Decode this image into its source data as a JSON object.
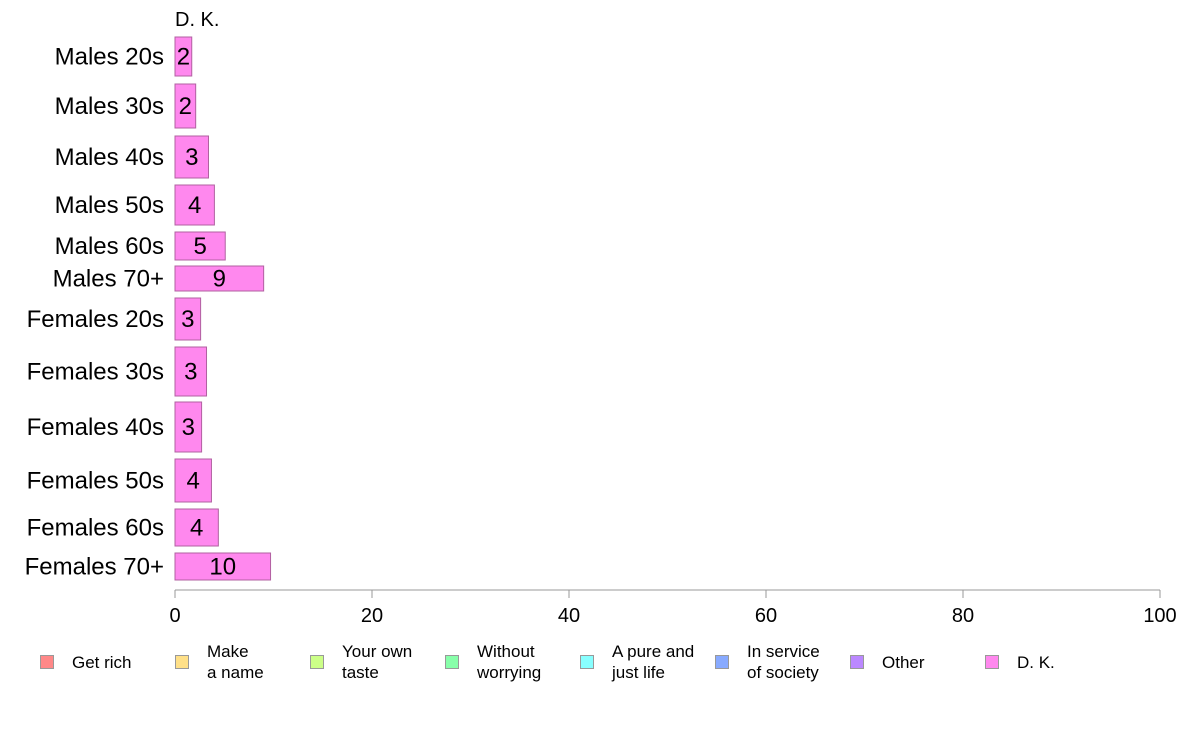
{
  "chart_data": {
    "type": "bar",
    "orientation": "horizontal",
    "column_title": "D. K.",
    "categories": [
      "Males 20s",
      "Males 30s",
      "Males 40s",
      "Males 50s",
      "Males 60s",
      "Males 70+",
      "Females 20s",
      "Females 30s",
      "Females 40s",
      "Females 50s",
      "Females 60s",
      "Females 70+"
    ],
    "series": [
      {
        "name": "D. K.",
        "color": "#ff88ee",
        "values": [
          1.7,
          2.1,
          3.4,
          4.0,
          5.1,
          9.0,
          2.6,
          3.2,
          2.7,
          3.7,
          4.4,
          9.7
        ],
        "labels": [
          "2",
          "2",
          "3",
          "4",
          "5",
          "9",
          "3",
          "3",
          "3",
          "4",
          "4",
          "10"
        ]
      }
    ],
    "xlim": [
      0,
      100
    ],
    "xticks": [
      "0",
      "20",
      "40",
      "60",
      "80",
      "100"
    ],
    "grid": false
  },
  "legend": [
    {
      "label": "Get rich",
      "color": "#ff8888"
    },
    {
      "label": "Make\na name",
      "color": "#ffe088"
    },
    {
      "label": "Your own\ntaste",
      "color": "#ccff88"
    },
    {
      "label": "Without\nworrying",
      "color": "#88ffaa"
    },
    {
      "label": "A pure and\njust life",
      "color": "#88ffff"
    },
    {
      "label": "In service\nof society",
      "color": "#88aaff"
    },
    {
      "label": "Other",
      "color": "#bb88ff"
    },
    {
      "label": "D. K.",
      "color": "#ff88ee"
    }
  ]
}
